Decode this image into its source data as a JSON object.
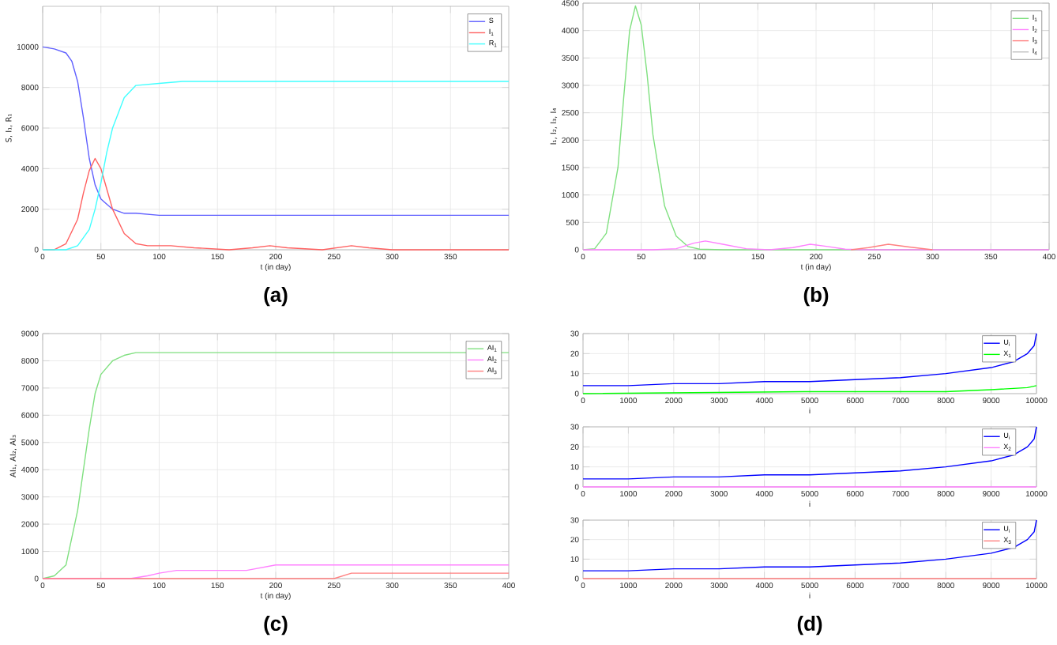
{
  "chart_data": [
    {
      "type": "line",
      "xlabel": "t (in day)",
      "ylabel": "S, I₁, R₁",
      "xlim": [
        0,
        400
      ],
      "ylim": [
        0,
        12000
      ],
      "xticks": [
        0,
        50,
        100,
        150,
        200,
        250,
        300,
        350
      ],
      "yticks": [
        0,
        2000,
        4000,
        6000,
        8000,
        10000
      ],
      "grid": true,
      "legend": "top right",
      "annotations": [
        "(a)"
      ],
      "series": [
        {
          "name": "S",
          "color": "#6060ff",
          "x": [
            0,
            10,
            20,
            25,
            30,
            35,
            40,
            45,
            50,
            60,
            70,
            80,
            100,
            150,
            200,
            300,
            400
          ],
          "values": [
            10000,
            9900,
            9700,
            9300,
            8300,
            6500,
            4500,
            3200,
            2500,
            2000,
            1800,
            1800,
            1700,
            1700,
            1700,
            1700,
            1700
          ]
        },
        {
          "name": "I$_{1}$",
          "color": "#ff6060",
          "x": [
            0,
            10,
            20,
            30,
            35,
            40,
            45,
            50,
            55,
            60,
            70,
            80,
            90,
            100,
            110,
            130,
            160,
            180,
            195,
            210,
            240,
            265,
            280,
            300,
            400
          ],
          "values": [
            0,
            0,
            300,
            1500,
            2800,
            3900,
            4500,
            4000,
            3000,
            2000,
            800,
            300,
            200,
            200,
            200,
            100,
            0,
            100,
            200,
            100,
            0,
            200,
            100,
            0,
            0
          ]
        },
        {
          "name": "R$_{1}$",
          "color": "#40ffff",
          "x": [
            0,
            20,
            30,
            40,
            45,
            50,
            55,
            60,
            70,
            80,
            100,
            120,
            150,
            200,
            250,
            300,
            400
          ],
          "values": [
            0,
            0,
            200,
            1000,
            2000,
            3300,
            4800,
            6000,
            7500,
            8100,
            8200,
            8300,
            8300,
            8300,
            8300,
            8300,
            8300
          ]
        }
      ]
    },
    {
      "type": "line",
      "xlabel": "t (in day)",
      "ylabel": "I₁, I₂, I₃, I₄",
      "xlim": [
        0,
        400
      ],
      "ylim": [
        0,
        4500
      ],
      "xticks": [
        0,
        50,
        100,
        150,
        200,
        250,
        300,
        350,
        400
      ],
      "yticks": [
        0,
        500,
        1000,
        1500,
        2000,
        2500,
        3000,
        3500,
        4000,
        4500
      ],
      "grid": true,
      "legend": "top right",
      "annotations": [
        "(b)"
      ],
      "series": [
        {
          "name": "I$_{1}$",
          "color": "#80e080",
          "x": [
            0,
            10,
            20,
            30,
            35,
            40,
            45,
            50,
            55,
            60,
            70,
            80,
            90,
            100,
            120,
            400
          ],
          "values": [
            0,
            20,
            300,
            1500,
            2800,
            4000,
            4450,
            4100,
            3200,
            2100,
            800,
            250,
            60,
            10,
            0,
            0
          ]
        },
        {
          "name": "I$_{2}$",
          "color": "#ff80ff",
          "x": [
            0,
            60,
            80,
            95,
            105,
            120,
            140,
            160,
            180,
            195,
            210,
            225,
            240,
            400
          ],
          "values": [
            0,
            0,
            20,
            120,
            160,
            100,
            20,
            0,
            40,
            100,
            60,
            10,
            0,
            0
          ]
        },
        {
          "name": "I$_{3}$",
          "color": "#ff8080",
          "x": [
            230,
            245,
            262,
            280,
            300
          ],
          "values": [
            0,
            40,
            100,
            50,
            0
          ]
        },
        {
          "name": "I$_{4}$",
          "color": "#c0c0c0"
        }
      ]
    },
    {
      "type": "line",
      "xlabel": "t (in day)",
      "ylabel": "AI₁, AI₂, AI₃",
      "xlim": [
        0,
        400
      ],
      "ylim": [
        0,
        9000
      ],
      "xticks": [
        0,
        50,
        100,
        150,
        200,
        250,
        300,
        350,
        400
      ],
      "yticks": [
        0,
        1000,
        2000,
        3000,
        4000,
        5000,
        6000,
        7000,
        8000,
        9000
      ],
      "grid": true,
      "legend": "top right",
      "annotations": [
        "(c)"
      ],
      "series": [
        {
          "name": "AI$_{1}$",
          "color": "#80e080",
          "x": [
            0,
            10,
            20,
            30,
            40,
            45,
            50,
            60,
            70,
            80,
            400
          ],
          "values": [
            0,
            100,
            500,
            2500,
            5500,
            6800,
            7500,
            8000,
            8200,
            8300,
            8300
          ]
        },
        {
          "name": "AI$_{2}$",
          "color": "#ff80ff",
          "x": [
            0,
            75,
            90,
            100,
            115,
            175,
            200,
            400
          ],
          "values": [
            0,
            0,
            100,
            200,
            300,
            300,
            500,
            500
          ]
        },
        {
          "name": "AI$_{3}$",
          "color": "#ff8080",
          "x": [
            0,
            250,
            265,
            400
          ],
          "values": [
            0,
            0,
            200,
            200
          ]
        }
      ]
    },
    {
      "type": "line",
      "xlabel": "i",
      "xlim": [
        0,
        10000
      ],
      "ylim": [
        0,
        30
      ],
      "xticks": [
        0,
        1000,
        2000,
        3000,
        4000,
        5000,
        6000,
        7000,
        8000,
        9000,
        10000
      ],
      "yticks": [
        0,
        10,
        20,
        30
      ],
      "grid": true,
      "legend": "top right",
      "series": [
        {
          "name": "U$_{i}$",
          "color": "#0000ff",
          "x": [
            0,
            1000,
            2000,
            3000,
            4000,
            5000,
            6000,
            7000,
            8000,
            9000,
            9500,
            9800,
            9950,
            10000
          ],
          "values": [
            4,
            4,
            5,
            5,
            6,
            6,
            7,
            8,
            10,
            13,
            16,
            20,
            24,
            30
          ]
        },
        {
          "name": "X$_{1}$",
          "color": "#00ff00",
          "x": [
            0,
            5000,
            8000,
            9000,
            9800,
            10000
          ],
          "values": [
            0,
            1,
            1,
            2,
            3,
            4
          ]
        }
      ]
    },
    {
      "type": "line",
      "xlabel": "i",
      "xlim": [
        0,
        10000
      ],
      "ylim": [
        0,
        30
      ],
      "xticks": [
        0,
        1000,
        2000,
        3000,
        4000,
        5000,
        6000,
        7000,
        8000,
        9000,
        10000
      ],
      "yticks": [
        0,
        10,
        20,
        30
      ],
      "grid": true,
      "legend": "top right",
      "series": [
        {
          "name": "U$_{i}$",
          "color": "#0000ff",
          "x": [
            0,
            1000,
            2000,
            3000,
            4000,
            5000,
            6000,
            7000,
            8000,
            9000,
            9500,
            9800,
            9950,
            10000
          ],
          "values": [
            4,
            4,
            5,
            5,
            6,
            6,
            7,
            8,
            10,
            13,
            16,
            20,
            24,
            30
          ]
        },
        {
          "name": "X$_{2}$",
          "color": "#ff80ff",
          "x": [
            0,
            10000
          ],
          "values": [
            0,
            0
          ]
        }
      ]
    },
    {
      "type": "line",
      "xlabel": "i",
      "xlim": [
        0,
        10000
      ],
      "ylim": [
        0,
        30
      ],
      "xticks": [
        0,
        1000,
        2000,
        3000,
        4000,
        5000,
        6000,
        7000,
        8000,
        9000,
        10000
      ],
      "yticks": [
        0,
        10,
        20,
        30
      ],
      "grid": true,
      "legend": "top right",
      "annotations": [
        "(d)"
      ],
      "series": [
        {
          "name": "U$_{i}$",
          "color": "#0000ff",
          "x": [
            0,
            1000,
            2000,
            3000,
            4000,
            5000,
            6000,
            7000,
            8000,
            9000,
            9500,
            9800,
            9950,
            10000
          ],
          "values": [
            4,
            4,
            5,
            5,
            6,
            6,
            7,
            8,
            10,
            13,
            16,
            20,
            24,
            30
          ]
        },
        {
          "name": "X$_{3}$",
          "color": "#ff8080",
          "x": [
            0,
            10000
          ],
          "values": [
            0,
            0
          ]
        }
      ]
    }
  ]
}
